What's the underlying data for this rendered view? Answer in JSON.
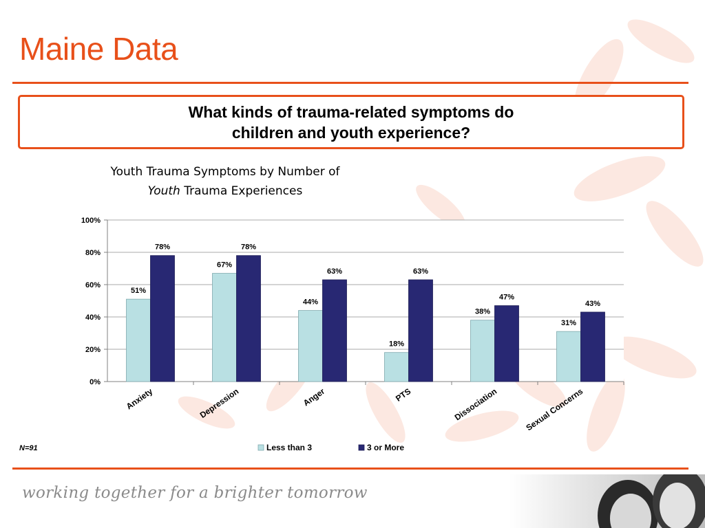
{
  "slide": {
    "title": "Maine Data",
    "question_line1": "What kinds of trauma-related symptoms do",
    "question_line2": "children and youth experience?",
    "sample_size": "N=91",
    "tagline": "working together for a brighter tomorrow"
  },
  "colors": {
    "accent": "#e8501a",
    "series_1": "#b9e0e3",
    "series_2": "#282873"
  },
  "chart_data": {
    "type": "bar",
    "title_line1": "Youth Trauma Symptoms by Number of",
    "title_line2_italic": "Youth",
    "title_line2_rest": " Trauma Experiences",
    "categories": [
      "Anxiety",
      "Depression",
      "Anger",
      "PTS",
      "Dissociation",
      "Sexual Concerns"
    ],
    "series": [
      {
        "name": "Less than 3",
        "values": [
          51,
          67,
          44,
          18,
          38,
          31
        ]
      },
      {
        "name": "3 or More",
        "values": [
          78,
          78,
          63,
          63,
          47,
          43
        ]
      }
    ],
    "ylim": [
      0,
      100
    ],
    "yticks": [
      0,
      20,
      40,
      60,
      80,
      100
    ],
    "value_format": "percent",
    "grid": true,
    "legend_position": "bottom"
  }
}
